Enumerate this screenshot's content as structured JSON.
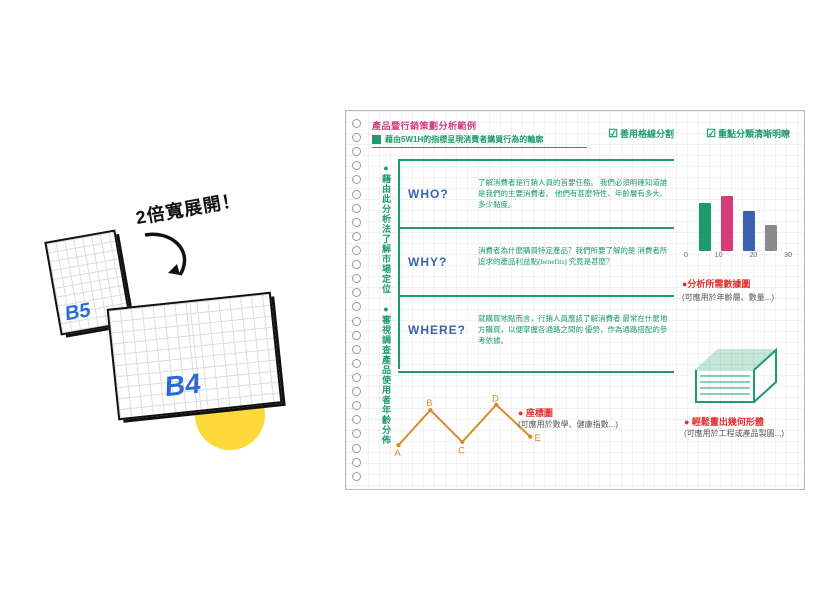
{
  "left": {
    "callout": "2倍寬展開！",
    "b5": "B5",
    "b4": "B4",
    "colors": {
      "ink": "#111",
      "tag": "#2a6cd6",
      "dot": "#ffd83b"
    }
  },
  "notebook": {
    "header": {
      "line1": "產品暨行銷策劃分析範例",
      "line2": "藉由5W1H的指標呈現消費者購買行為的輪廓",
      "flag1": "善用格線分割",
      "flag2": "重點分類清晰明瞭"
    },
    "sideText": "●藉由此分析法了解市場定位　●審視調查產品使用者年齡分佈",
    "rows": [
      {
        "q": "WHO?",
        "desc": "了解消費者是行銷人員的首要任務。\n我們必須明確知道誰是我們的主要消費者。\n他們有甚麼特性、年齡層有多大、多少黏度。"
      },
      {
        "q": "WHY?",
        "desc": "消費者為什麼購買特定產品？我們所要了解的是\n消費者所追求的產品利益點(benefits)\n究竟是甚麼？"
      },
      {
        "q": "WHERE?",
        "desc": "就購買地點而言，行銷人員應該了解消費者\n最常在什麼地方購買，以便掌握各通路之間的\n優勢，作為通路搭配的參考依據。"
      }
    ],
    "barChart": {
      "ticks": [
        "0",
        "10",
        "20",
        "30"
      ],
      "bars": [
        {
          "h": 48,
          "c": "#1d9b6c"
        },
        {
          "h": 55,
          "c": "#d63b7a"
        },
        {
          "h": 40,
          "c": "#3a62b0"
        },
        {
          "h": 26,
          "c": "#8a8a8a"
        }
      ],
      "title": "●分析所需數據圖",
      "sub": "(可應用於年齡層、數量...)"
    },
    "coord": {
      "points": [
        "A",
        "B",
        "C",
        "D",
        "E"
      ],
      "color": "#d68a2a",
      "title": "● 座標圖",
      "sub": "(可應用於數學、健康指數...)"
    },
    "geo": {
      "color": "#1d9b6c",
      "title": "● 輕鬆畫出幾何形體",
      "sub": "(可應用於工程或產品製圖...)"
    },
    "palette": {
      "green": "#1d9b6c",
      "pink": "#d63b7a",
      "blue": "#3a62b0",
      "red": "#e03030",
      "grey": "#8a8a8a"
    }
  }
}
